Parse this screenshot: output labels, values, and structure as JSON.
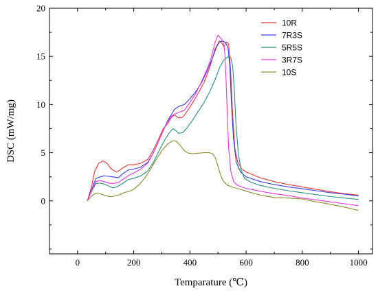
{
  "chart_data": {
    "type": "line",
    "title": "",
    "xlabel": "Temparature (℃)",
    "ylabel": "DSC (mW/mg)",
    "xlim": [
      -100,
      1050
    ],
    "ylim": [
      -5.5,
      20
    ],
    "x_ticks": [
      0,
      200,
      400,
      600,
      800,
      1000
    ],
    "y_ticks": [
      0,
      5,
      10,
      15,
      20
    ],
    "x_tick_labels": [
      "0",
      "200",
      "400",
      "600",
      "800",
      "1000"
    ],
    "y_tick_labels": [
      "0",
      "5",
      "10",
      "15",
      "20"
    ],
    "grid": false,
    "legend_position": "top-right",
    "series": [
      {
        "name": "10R",
        "color": "#e8363a",
        "points": [
          [
            35,
            0
          ],
          [
            50,
            1.5
          ],
          [
            60,
            3.0
          ],
          [
            75,
            3.9
          ],
          [
            90,
            4.15
          ],
          [
            105,
            3.9
          ],
          [
            120,
            3.3
          ],
          [
            140,
            3.0
          ],
          [
            160,
            3.4
          ],
          [
            180,
            3.75
          ],
          [
            200,
            3.75
          ],
          [
            225,
            3.9
          ],
          [
            250,
            4.3
          ],
          [
            270,
            5.3
          ],
          [
            290,
            6.5
          ],
          [
            305,
            7.5
          ],
          [
            320,
            8.0
          ],
          [
            335,
            8.7
          ],
          [
            345,
            8.9
          ],
          [
            360,
            8.6
          ],
          [
            375,
            8.7
          ],
          [
            390,
            9.3
          ],
          [
            410,
            10.2
          ],
          [
            430,
            11.2
          ],
          [
            450,
            12.3
          ],
          [
            470,
            13.8
          ],
          [
            490,
            15.8
          ],
          [
            505,
            16.6
          ],
          [
            515,
            16.3
          ],
          [
            522,
            16.0
          ],
          [
            530,
            16.5
          ],
          [
            538,
            16.3
          ],
          [
            545,
            13.5
          ],
          [
            552,
            9.0
          ],
          [
            560,
            5.5
          ],
          [
            570,
            4.0
          ],
          [
            585,
            3.3
          ],
          [
            600,
            3.0
          ],
          [
            650,
            2.4
          ],
          [
            700,
            2.0
          ],
          [
            750,
            1.7
          ],
          [
            800,
            1.45
          ],
          [
            850,
            1.2
          ],
          [
            900,
            0.95
          ],
          [
            950,
            0.75
          ],
          [
            1000,
            0.6
          ]
        ]
      },
      {
        "name": "7R3S",
        "color": "#3a3fe0",
        "points": [
          [
            35,
            0
          ],
          [
            50,
            1.2
          ],
          [
            65,
            2.3
          ],
          [
            80,
            2.5
          ],
          [
            95,
            2.6
          ],
          [
            110,
            2.55
          ],
          [
            125,
            2.5
          ],
          [
            145,
            2.4
          ],
          [
            160,
            2.8
          ],
          [
            180,
            3.2
          ],
          [
            200,
            3.3
          ],
          [
            225,
            3.5
          ],
          [
            250,
            4.0
          ],
          [
            270,
            5.0
          ],
          [
            290,
            6.3
          ],
          [
            305,
            7.3
          ],
          [
            320,
            8.3
          ],
          [
            335,
            9.0
          ],
          [
            345,
            9.5
          ],
          [
            360,
            9.8
          ],
          [
            380,
            10.0
          ],
          [
            400,
            10.6
          ],
          [
            420,
            11.3
          ],
          [
            440,
            12.2
          ],
          [
            460,
            13.4
          ],
          [
            480,
            14.8
          ],
          [
            495,
            16.0
          ],
          [
            505,
            16.5
          ],
          [
            518,
            16.6
          ],
          [
            528,
            16.4
          ],
          [
            536,
            15.8
          ],
          [
            542,
            14.0
          ],
          [
            548,
            10.0
          ],
          [
            555,
            6.5
          ],
          [
            565,
            4.0
          ],
          [
            580,
            3.0
          ],
          [
            600,
            2.5
          ],
          [
            650,
            2.0
          ],
          [
            700,
            1.7
          ],
          [
            750,
            1.45
          ],
          [
            800,
            1.25
          ],
          [
            850,
            1.05
          ],
          [
            900,
            0.85
          ],
          [
            950,
            0.7
          ],
          [
            1000,
            0.5
          ]
        ]
      },
      {
        "name": "5R5S",
        "color": "#2a8f80",
        "points": [
          [
            35,
            0
          ],
          [
            50,
            1.0
          ],
          [
            65,
            1.8
          ],
          [
            80,
            1.85
          ],
          [
            95,
            1.75
          ],
          [
            110,
            1.55
          ],
          [
            125,
            1.35
          ],
          [
            140,
            1.45
          ],
          [
            160,
            1.8
          ],
          [
            180,
            2.2
          ],
          [
            200,
            2.35
          ],
          [
            225,
            2.6
          ],
          [
            250,
            3.1
          ],
          [
            270,
            4.0
          ],
          [
            290,
            5.2
          ],
          [
            310,
            6.3
          ],
          [
            325,
            7.0
          ],
          [
            340,
            7.5
          ],
          [
            350,
            7.3
          ],
          [
            360,
            7.0
          ],
          [
            375,
            7.1
          ],
          [
            390,
            7.6
          ],
          [
            410,
            8.4
          ],
          [
            430,
            9.3
          ],
          [
            450,
            10.2
          ],
          [
            470,
            11.3
          ],
          [
            490,
            12.6
          ],
          [
            505,
            13.8
          ],
          [
            520,
            14.6
          ],
          [
            535,
            14.95
          ],
          [
            545,
            14.9
          ],
          [
            552,
            14.0
          ],
          [
            558,
            11.5
          ],
          [
            564,
            8.0
          ],
          [
            572,
            5.0
          ],
          [
            582,
            3.2
          ],
          [
            595,
            2.3
          ],
          [
            620,
            1.9
          ],
          [
            650,
            1.6
          ],
          [
            700,
            1.3
          ],
          [
            750,
            1.05
          ],
          [
            800,
            0.85
          ],
          [
            850,
            0.65
          ],
          [
            900,
            0.45
          ],
          [
            950,
            0.3
          ],
          [
            1000,
            0.15
          ]
        ]
      },
      {
        "name": "3R7S",
        "color": "#e835e0",
        "points": [
          [
            35,
            0
          ],
          [
            50,
            1.1
          ],
          [
            65,
            2.0
          ],
          [
            80,
            2.1
          ],
          [
            95,
            2.0
          ],
          [
            110,
            1.85
          ],
          [
            125,
            1.8
          ],
          [
            145,
            1.9
          ],
          [
            165,
            2.3
          ],
          [
            185,
            2.7
          ],
          [
            200,
            2.9
          ],
          [
            225,
            3.3
          ],
          [
            250,
            3.9
          ],
          [
            270,
            5.0
          ],
          [
            290,
            6.3
          ],
          [
            305,
            7.3
          ],
          [
            320,
            8.2
          ],
          [
            335,
            8.8
          ],
          [
            345,
            9.0
          ],
          [
            360,
            9.2
          ],
          [
            380,
            9.4
          ],
          [
            400,
            10.2
          ],
          [
            420,
            11.1
          ],
          [
            440,
            12.3
          ],
          [
            460,
            13.6
          ],
          [
            475,
            14.8
          ],
          [
            490,
            16.5
          ],
          [
            500,
            17.2
          ],
          [
            510,
            16.9
          ],
          [
            518,
            16.5
          ],
          [
            524,
            15.5
          ],
          [
            528,
            13.0
          ],
          [
            533,
            9.0
          ],
          [
            538,
            5.5
          ],
          [
            546,
            3.0
          ],
          [
            556,
            2.0
          ],
          [
            570,
            1.6
          ],
          [
            600,
            1.3
          ],
          [
            650,
            1.0
          ],
          [
            700,
            0.75
          ],
          [
            750,
            0.55
          ],
          [
            800,
            0.3
          ],
          [
            850,
            0.1
          ],
          [
            900,
            -0.1
          ],
          [
            950,
            -0.3
          ],
          [
            1000,
            -0.5
          ]
        ]
      },
      {
        "name": "10S",
        "color": "#8a8a2a",
        "points": [
          [
            35,
            0
          ],
          [
            50,
            0.5
          ],
          [
            65,
            0.8
          ],
          [
            80,
            0.75
          ],
          [
            95,
            0.6
          ],
          [
            110,
            0.45
          ],
          [
            125,
            0.45
          ],
          [
            145,
            0.6
          ],
          [
            165,
            0.85
          ],
          [
            185,
            1.0
          ],
          [
            200,
            1.2
          ],
          [
            220,
            1.7
          ],
          [
            240,
            2.4
          ],
          [
            260,
            3.3
          ],
          [
            280,
            4.3
          ],
          [
            300,
            5.2
          ],
          [
            320,
            5.9
          ],
          [
            340,
            6.25
          ],
          [
            350,
            6.2
          ],
          [
            365,
            5.8
          ],
          [
            380,
            5.2
          ],
          [
            395,
            4.95
          ],
          [
            410,
            4.9
          ],
          [
            430,
            4.95
          ],
          [
            450,
            5.0
          ],
          [
            470,
            5.0
          ],
          [
            480,
            4.9
          ],
          [
            490,
            4.5
          ],
          [
            500,
            3.6
          ],
          [
            510,
            2.6
          ],
          [
            520,
            2.0
          ],
          [
            535,
            1.6
          ],
          [
            555,
            1.4
          ],
          [
            580,
            1.2
          ],
          [
            600,
            1.0
          ],
          [
            650,
            0.6
          ],
          [
            700,
            0.35
          ],
          [
            750,
            0.3
          ],
          [
            800,
            0.2
          ],
          [
            850,
            -0.1
          ],
          [
            900,
            -0.35
          ],
          [
            950,
            -0.65
          ],
          [
            1000,
            -1.0
          ]
        ]
      }
    ]
  }
}
